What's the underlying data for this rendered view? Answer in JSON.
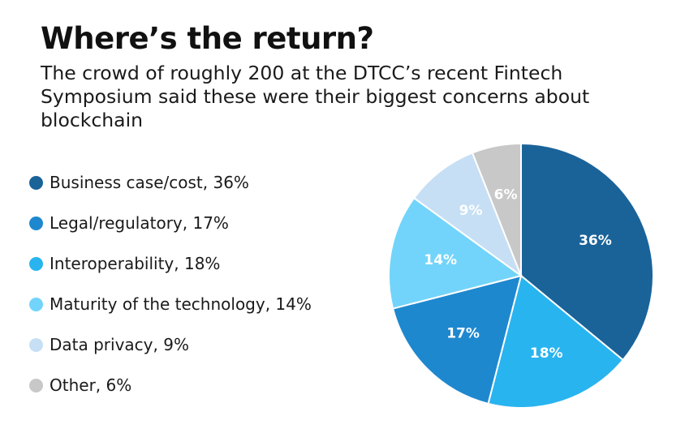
{
  "chart_data": {
    "type": "pie",
    "title": "Where’s the return?",
    "subtitle": "The crowd of roughly 200 at the DTCC’s recent Fintech Symposium said these were their biggest concerns about blockchain",
    "legend_position": "left",
    "slices": [
      {
        "name": "Business case/cost",
        "value": 36,
        "label": "36%",
        "legend": "Business case/cost, 36%",
        "color": "#1a6399"
      },
      {
        "name": "Interoperability",
        "value": 18,
        "label": "18%",
        "legend": "Interoperability, 18%",
        "color": "#28b4ef"
      },
      {
        "name": "Legal/regulatory",
        "value": 17,
        "label": "17%",
        "legend": "Legal/regulatory, 17%",
        "color": "#1e88cf"
      },
      {
        "name": "Maturity of the technology",
        "value": 14,
        "label": "14%",
        "legend": "Maturity of the technology, 14%",
        "color": "#72d4fa"
      },
      {
        "name": "Data privacy",
        "value": 9,
        "label": "9%",
        "legend": "Data privacy, 9%",
        "color": "#c6dff5"
      },
      {
        "name": "Other",
        "value": 6,
        "label": "6%",
        "legend": "Other, 6%",
        "color": "#c8c8c8"
      }
    ],
    "legend_order": [
      "Business case/cost",
      "Legal/regulatory",
      "Interoperability",
      "Maturity of the technology",
      "Data privacy",
      "Other"
    ]
  }
}
